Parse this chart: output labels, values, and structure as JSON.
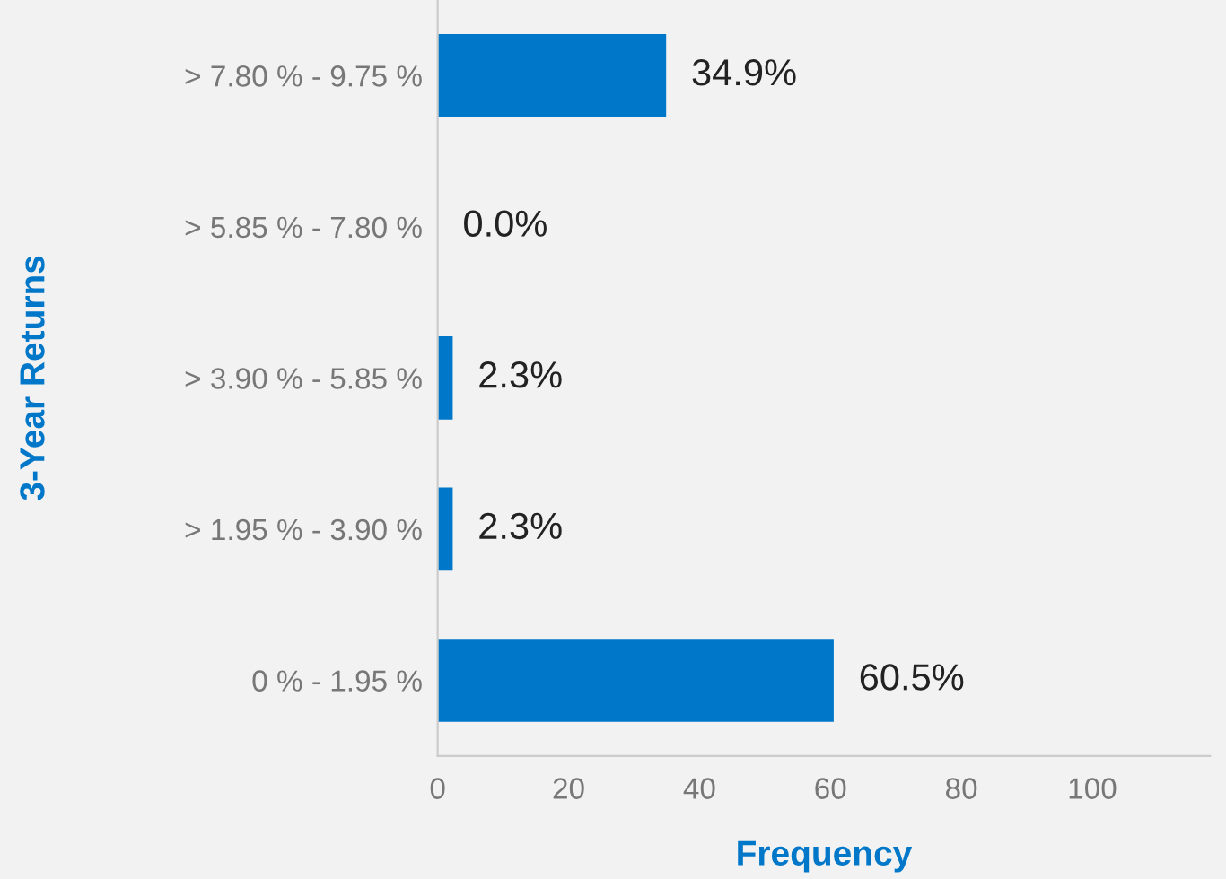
{
  "chart_data": {
    "type": "bar",
    "orientation": "horizontal",
    "xlabel": "Frequency",
    "ylabel": "3-Year Returns",
    "categories": [
      "> 7.80 % - 9.75 %",
      "> 5.85 % - 7.80 %",
      "> 3.90 % - 5.85 %",
      "> 1.95 % - 3.90 %",
      "0 % - 1.95 %"
    ],
    "values": [
      34.9,
      0.0,
      2.3,
      2.3,
      60.5
    ],
    "value_labels": [
      "34.9%",
      "0.0%",
      "2.3%",
      "2.3%",
      "60.5%"
    ],
    "color": "#0077c8",
    "xlim": [
      0,
      118
    ],
    "xticks": [
      0,
      20,
      40,
      60,
      80,
      100
    ],
    "grid": false,
    "legend": false
  }
}
